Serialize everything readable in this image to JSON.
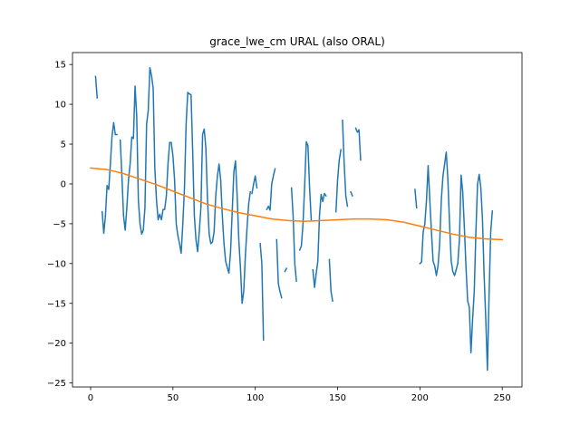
{
  "chart_data": {
    "type": "line",
    "title": "grace_lwe_cm URAL (also ORAL)",
    "xlabel": "",
    "ylabel": "",
    "xlim": [
      -11,
      262
    ],
    "ylim": [
      -25.5,
      16.5
    ],
    "xticks": [
      0,
      50,
      100,
      150,
      200,
      250
    ],
    "yticks": [
      -25,
      -20,
      -15,
      -10,
      -5,
      0,
      5,
      10,
      15
    ],
    "grid": false,
    "legend": "none",
    "series": [
      {
        "color": "#1f77b4",
        "segments": [
          [
            [
              3,
              13.5
            ],
            [
              4,
              10.8
            ]
          ],
          [
            [
              7,
              -3.5
            ],
            [
              8,
              -6.2
            ],
            [
              9,
              -4.0
            ],
            [
              10,
              -0.2
            ],
            [
              11,
              -0.7
            ],
            [
              12,
              2.5
            ],
            [
              13,
              6.0
            ],
            [
              14,
              7.7
            ],
            [
              15,
              6.2
            ],
            [
              16,
              6.2
            ]
          ],
          [
            [
              18,
              5.5
            ],
            [
              19,
              1.0
            ],
            [
              20,
              -4.0
            ],
            [
              21,
              -5.8
            ],
            [
              22,
              -3.0
            ],
            [
              23,
              0.5
            ],
            [
              24,
              2.5
            ],
            [
              25,
              5.9
            ],
            [
              26,
              5.7
            ],
            [
              27,
              12.3
            ],
            [
              28,
              8.5
            ],
            [
              29,
              -2.0
            ],
            [
              30,
              -5.0
            ],
            [
              31,
              -6.3
            ],
            [
              32,
              -5.8
            ],
            [
              33,
              -3.0
            ],
            [
              34,
              7.5
            ],
            [
              35,
              9.2
            ],
            [
              36,
              14.6
            ],
            [
              37,
              13.6
            ],
            [
              38,
              12.0
            ],
            [
              39,
              2.0
            ],
            [
              40,
              -2.0
            ],
            [
              41,
              -4.5
            ],
            [
              42,
              -3.8
            ],
            [
              43,
              -4.5
            ],
            [
              44,
              -3.2
            ],
            [
              45,
              -3.2
            ],
            [
              46,
              -1.5
            ],
            [
              47,
              2.5
            ],
            [
              48,
              5.2
            ],
            [
              49,
              5.2
            ],
            [
              50,
              3.5
            ],
            [
              51,
              0.5
            ],
            [
              52,
              -5.0
            ],
            [
              53,
              -6.5
            ],
            [
              54,
              -7.5
            ],
            [
              55,
              -8.7
            ],
            [
              56,
              -5.0
            ],
            [
              57,
              -0.5
            ],
            [
              58,
              7.5
            ],
            [
              59,
              11.5
            ],
            [
              60,
              11.3
            ],
            [
              61,
              11.2
            ],
            [
              62,
              4.0
            ],
            [
              63,
              -4.0
            ],
            [
              64,
              -7.0
            ],
            [
              65,
              -8.5
            ],
            [
              66,
              -6.0
            ],
            [
              67,
              -3.0
            ],
            [
              68,
              6.2
            ],
            [
              69,
              6.9
            ],
            [
              70,
              4.5
            ],
            [
              71,
              -2.0
            ],
            [
              72,
              -6.3
            ],
            [
              73,
              -7.5
            ],
            [
              74,
              -7.3
            ],
            [
              75,
              -6.0
            ],
            [
              76,
              -1.5
            ],
            [
              77,
              1.0
            ],
            [
              78,
              2.5
            ],
            [
              79,
              0.5
            ],
            [
              80,
              -4.0
            ],
            [
              81,
              -7.5
            ],
            [
              82,
              -9.7
            ],
            [
              83,
              -10.5
            ],
            [
              84,
              -11.2
            ],
            [
              85,
              -8.5
            ],
            [
              86,
              -3.5
            ],
            [
              87,
              1.5
            ],
            [
              88,
              2.9
            ],
            [
              89,
              -1.5
            ],
            [
              90,
              -7.0
            ],
            [
              91,
              -10.5
            ],
            [
              92,
              -15.0
            ],
            [
              93,
              -13.5
            ],
            [
              94,
              -9.0
            ],
            [
              95,
              -5.5
            ],
            [
              96,
              -2.5
            ],
            [
              97,
              -1.0
            ]
          ],
          [
            [
              98,
              -1.2
            ],
            [
              99,
              0.0
            ],
            [
              100,
              1.0
            ],
            [
              101,
              -0.5
            ]
          ],
          [
            [
              103,
              -7.5
            ],
            [
              104,
              -10.0
            ],
            [
              105,
              -19.6
            ]
          ],
          [
            [
              107,
              -3.2
            ],
            [
              108,
              -2.8
            ],
            [
              109,
              -3.3
            ],
            [
              110,
              0.0
            ],
            [
              111,
              1.0
            ],
            [
              112,
              1.9
            ]
          ],
          [
            [
              113,
              -7.0
            ],
            [
              114,
              -12.5
            ],
            [
              115,
              -13.5
            ],
            [
              116,
              -14.3
            ]
          ],
          [
            [
              118,
              -11.0
            ],
            [
              119,
              -10.6
            ]
          ],
          [
            [
              122,
              -0.5
            ],
            [
              123,
              -4.0
            ],
            [
              124,
              -10.0
            ],
            [
              125,
              -12.2
            ]
          ],
          [
            [
              127,
              -8.3
            ],
            [
              128,
              -7.8
            ],
            [
              129,
              -5.0
            ],
            [
              130,
              -0.2
            ],
            [
              131,
              5.3
            ],
            [
              132,
              4.8
            ],
            [
              133,
              -0.5
            ],
            [
              134,
              -4.5
            ]
          ],
          [
            [
              135,
              -10.8
            ],
            [
              136,
              -13.0
            ],
            [
              137,
              -11.3
            ],
            [
              138,
              -9.7
            ],
            [
              139,
              -4.0
            ],
            [
              140,
              -1.3
            ],
            [
              141,
              -2.2
            ],
            [
              142,
              -1.2
            ],
            [
              143,
              -1.5
            ]
          ],
          [
            [
              145,
              -9.5
            ],
            [
              146,
              -13.5
            ],
            [
              147,
              -14.7
            ]
          ],
          [
            [
              149,
              -3.5
            ],
            [
              150,
              0.5
            ],
            [
              151,
              3.0
            ],
            [
              152,
              4.3
            ]
          ],
          [
            [
              153,
              8.0
            ],
            [
              154,
              2.5
            ],
            [
              155,
              -1.5
            ],
            [
              156,
              -2.8
            ]
          ],
          [
            [
              158,
              -1.0
            ],
            [
              159,
              -1.5
            ]
          ],
          [
            [
              160,
              4.5
            ]
          ],
          [
            [
              161,
              7.0
            ],
            [
              162,
              6.5
            ],
            [
              163,
              6.8
            ],
            [
              164,
              3.0
            ]
          ],
          [
            [
              197,
              -0.7
            ],
            [
              198,
              -3.0
            ]
          ],
          [
            [
              200,
              -10.0
            ],
            [
              201,
              -9.8
            ],
            [
              202,
              -6.0
            ],
            [
              203,
              -5.0
            ],
            [
              204,
              -2.0
            ],
            [
              205,
              2.3
            ],
            [
              206,
              -2.0
            ],
            [
              207,
              -6.0
            ],
            [
              208,
              -9.7
            ],
            [
              209,
              -10.3
            ],
            [
              210,
              -11.5
            ],
            [
              211,
              -10.3
            ],
            [
              212,
              -7.5
            ],
            [
              213,
              -2.0
            ],
            [
              214,
              1.0
            ],
            [
              215,
              2.5
            ],
            [
              216,
              4.0
            ],
            [
              217,
              0.5
            ],
            [
              218,
              -5.0
            ],
            [
              219,
              -9.7
            ],
            [
              220,
              -11.0
            ],
            [
              221,
              -11.5
            ],
            [
              222,
              -10.8
            ],
            [
              223,
              -10.0
            ],
            [
              224,
              -7.0
            ],
            [
              225,
              1.1
            ],
            [
              226,
              -1.0
            ],
            [
              227,
              -5.5
            ],
            [
              228,
              -10.5
            ],
            [
              229,
              -14.7
            ],
            [
              230,
              -15.5
            ],
            [
              231,
              -21.2
            ],
            [
              232,
              -17.0
            ],
            [
              233,
              -13.5
            ],
            [
              234,
              -6.0
            ],
            [
              235,
              0.0
            ],
            [
              236,
              1.2
            ],
            [
              237,
              -0.5
            ],
            [
              238,
              -4.5
            ],
            [
              239,
              -11.5
            ],
            [
              240,
              -17.0
            ],
            [
              241,
              -23.4
            ],
            [
              242,
              -14.0
            ],
            [
              243,
              -6.0
            ],
            [
              244,
              -3.4
            ]
          ]
        ]
      },
      {
        "color": "#ff7f0e",
        "points": [
          [
            0,
            2.0
          ],
          [
            10,
            1.8
          ],
          [
            20,
            1.3
          ],
          [
            30,
            0.6
          ],
          [
            40,
            -0.1
          ],
          [
            50,
            -0.9
          ],
          [
            60,
            -1.7
          ],
          [
            70,
            -2.5
          ],
          [
            80,
            -3.1
          ],
          [
            90,
            -3.6
          ],
          [
            100,
            -4.0
          ],
          [
            110,
            -4.4
          ],
          [
            120,
            -4.6
          ],
          [
            130,
            -4.7
          ],
          [
            140,
            -4.6
          ],
          [
            150,
            -4.5
          ],
          [
            160,
            -4.4
          ],
          [
            170,
            -4.4
          ],
          [
            180,
            -4.5
          ],
          [
            190,
            -4.8
          ],
          [
            200,
            -5.3
          ],
          [
            210,
            -5.8
          ],
          [
            220,
            -6.3
          ],
          [
            230,
            -6.7
          ],
          [
            240,
            -6.9
          ],
          [
            250,
            -7.0
          ]
        ]
      }
    ]
  }
}
